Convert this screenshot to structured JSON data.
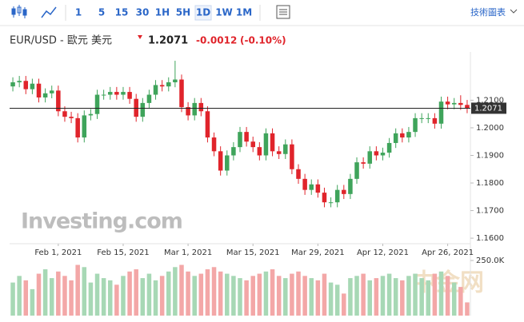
{
  "toolbar": {
    "intervals": [
      "1",
      "5",
      "15",
      "30",
      "1H",
      "5H",
      "1D",
      "1W",
      "1M"
    ],
    "selected": 6,
    "chart_link": "技術圖表"
  },
  "header": {
    "symbol": "EUR/USD - 歐元 美元",
    "price": "1.2071",
    "change": "-0.0012",
    "change_percent": "(-0.10%)"
  },
  "watermark": "Investing.com",
  "logo": "中金网",
  "chart_data": {
    "type": "candlestick",
    "colors": {
      "up": "#3fa45b",
      "down": "#e0242b",
      "up_volume": "#a7d8b5",
      "down_volume": "#f3a7a7"
    },
    "open": [
      1.215,
      1.2165,
      1.217,
      1.214,
      1.216,
      1.211,
      1.2125,
      1.2135,
      1.206,
      1.204,
      1.2035,
      1.1965,
      1.2045,
      1.205,
      1.212,
      1.212,
      1.213,
      1.212,
      1.213,
      1.2105,
      1.204,
      1.209,
      1.212,
      1.2155,
      1.215,
      1.2165,
      1.2175,
      1.2075,
      1.2045,
      1.209,
      1.206,
      1.1965,
      1.1915,
      1.1845,
      1.19,
      1.193,
      1.1985,
      1.195,
      1.193,
      1.19,
      1.198,
      1.1915,
      1.1905,
      1.194,
      1.185,
      1.1815,
      1.1775,
      1.1795,
      1.1765,
      1.173,
      1.173,
      1.1775,
      1.176,
      1.1815,
      1.1875,
      1.187,
      1.1915,
      1.19,
      1.191,
      1.1945,
      1.198,
      1.1965,
      1.1985,
      1.2035,
      1.2035,
      1.2035,
      1.2015,
      1.2095,
      1.2085,
      1.209,
      1.2083
    ],
    "high": [
      1.2183,
      1.2188,
      1.2188,
      1.2178,
      1.2178,
      1.2143,
      1.2153,
      1.2153,
      1.2078,
      1.2058,
      1.2053,
      1.2063,
      1.2068,
      1.2138,
      1.2138,
      1.2148,
      1.2148,
      1.2148,
      1.2148,
      1.2123,
      1.2108,
      1.2138,
      1.2173,
      1.2173,
      1.2183,
      1.2243,
      1.2193,
      1.2093,
      1.2108,
      1.2108,
      1.2078,
      1.1983,
      1.1933,
      1.1918,
      1.1948,
      1.2003,
      1.2003,
      1.1968,
      1.1948,
      1.1998,
      1.1998,
      1.1933,
      1.1958,
      1.1958,
      1.1868,
      1.1833,
      1.1813,
      1.1813,
      1.1783,
      1.1748,
      1.1793,
      1.1793,
      1.1833,
      1.1893,
      1.1893,
      1.1933,
      1.1933,
      1.1928,
      1.1963,
      1.1998,
      1.1998,
      1.2003,
      1.2053,
      1.2053,
      1.2053,
      1.2053,
      1.2113,
      1.2113,
      1.2108,
      1.2118,
      1.2101
    ],
    "low": [
      1.2132,
      1.2147,
      1.2122,
      1.2122,
      1.2092,
      1.2092,
      1.2107,
      1.2042,
      1.2022,
      1.2017,
      1.1947,
      1.1947,
      1.2027,
      1.2032,
      1.2102,
      1.2102,
      1.2102,
      1.2102,
      1.2087,
      1.2022,
      1.2022,
      1.2072,
      1.2102,
      1.2132,
      1.2132,
      1.2147,
      1.2057,
      1.2027,
      1.2027,
      1.2042,
      1.1947,
      1.1897,
      1.1827,
      1.1827,
      1.1882,
      1.1912,
      1.1932,
      1.1912,
      1.1882,
      1.1882,
      1.1897,
      1.1887,
      1.1887,
      1.1832,
      1.1797,
      1.1757,
      1.1757,
      1.1747,
      1.1712,
      1.1712,
      1.1712,
      1.1742,
      1.1742,
      1.1797,
      1.1852,
      1.1852,
      1.1882,
      1.1882,
      1.1892,
      1.1927,
      1.1947,
      1.1947,
      1.1967,
      1.2017,
      1.2017,
      1.1997,
      1.1997,
      1.2067,
      1.2067,
      1.2065,
      1.2053
    ],
    "close": [
      1.2165,
      1.217,
      1.214,
      1.216,
      1.211,
      1.2125,
      1.2135,
      1.206,
      1.204,
      1.2035,
      1.1965,
      1.2045,
      1.205,
      1.212,
      1.212,
      1.213,
      1.212,
      1.213,
      1.2105,
      1.204,
      1.209,
      1.212,
      1.2155,
      1.215,
      1.2165,
      1.2175,
      1.2075,
      1.2045,
      1.209,
      1.206,
      1.1965,
      1.1915,
      1.1845,
      1.19,
      1.193,
      1.1985,
      1.195,
      1.193,
      1.19,
      1.198,
      1.1915,
      1.1905,
      1.194,
      1.185,
      1.1815,
      1.1775,
      1.1795,
      1.1765,
      1.173,
      1.173,
      1.1775,
      1.176,
      1.1815,
      1.1875,
      1.187,
      1.1915,
      1.19,
      1.191,
      1.1945,
      1.198,
      1.1965,
      1.1985,
      1.2035,
      1.2035,
      1.2035,
      1.2015,
      1.2095,
      1.2085,
      1.209,
      1.2083,
      1.2071
    ],
    "volume": [
      150000,
      180000,
      160000,
      120000,
      190000,
      210000,
      170000,
      200000,
      180000,
      160000,
      230000,
      220000,
      150000,
      190000,
      170000,
      160000,
      140000,
      180000,
      200000,
      210000,
      170000,
      190000,
      160000,
      180000,
      200000,
      220000,
      230000,
      200000,
      180000,
      190000,
      210000,
      220000,
      200000,
      190000,
      180000,
      170000,
      160000,
      180000,
      190000,
      200000,
      210000,
      180000,
      170000,
      190000,
      200000,
      180000,
      170000,
      160000,
      190000,
      150000,
      140000,
      100000,
      170000,
      180000,
      190000,
      160000,
      170000,
      180000,
      190000,
      170000,
      160000,
      180000,
      190000,
      170000,
      160000,
      190000,
      200000,
      180000,
      150000,
      130000,
      60000
    ],
    "last_price": 1.2071,
    "xlim": [
      -0.5,
      70.5
    ],
    "xticks": [
      {
        "value": 7,
        "label": "Feb 1, 2021"
      },
      {
        "value": 17,
        "label": "Feb 15, 2021"
      },
      {
        "value": 27,
        "label": "Mar 1, 2021"
      },
      {
        "value": 37,
        "label": "Mar 15, 2021"
      },
      {
        "value": 47,
        "label": "Mar 29, 2021"
      },
      {
        "value": 57,
        "label": "Apr 12, 2021"
      },
      {
        "value": 67,
        "label": "Apr 26, 2021"
      }
    ],
    "ylim": [
      1.158,
      1.2275
    ],
    "yticks": [
      {
        "value": 1.16,
        "label": "1.1600"
      },
      {
        "value": 1.17,
        "label": "1.1700"
      },
      {
        "value": 1.18,
        "label": "1.1800"
      },
      {
        "value": 1.19,
        "label": "1.1900"
      },
      {
        "value": 1.2,
        "label": "1.2000"
      },
      {
        "value": 1.21,
        "label": "1.2100"
      }
    ],
    "vlim": [
      0,
      250000
    ],
    "vticks": [
      {
        "value": 250000,
        "label": "250.0K"
      }
    ]
  }
}
